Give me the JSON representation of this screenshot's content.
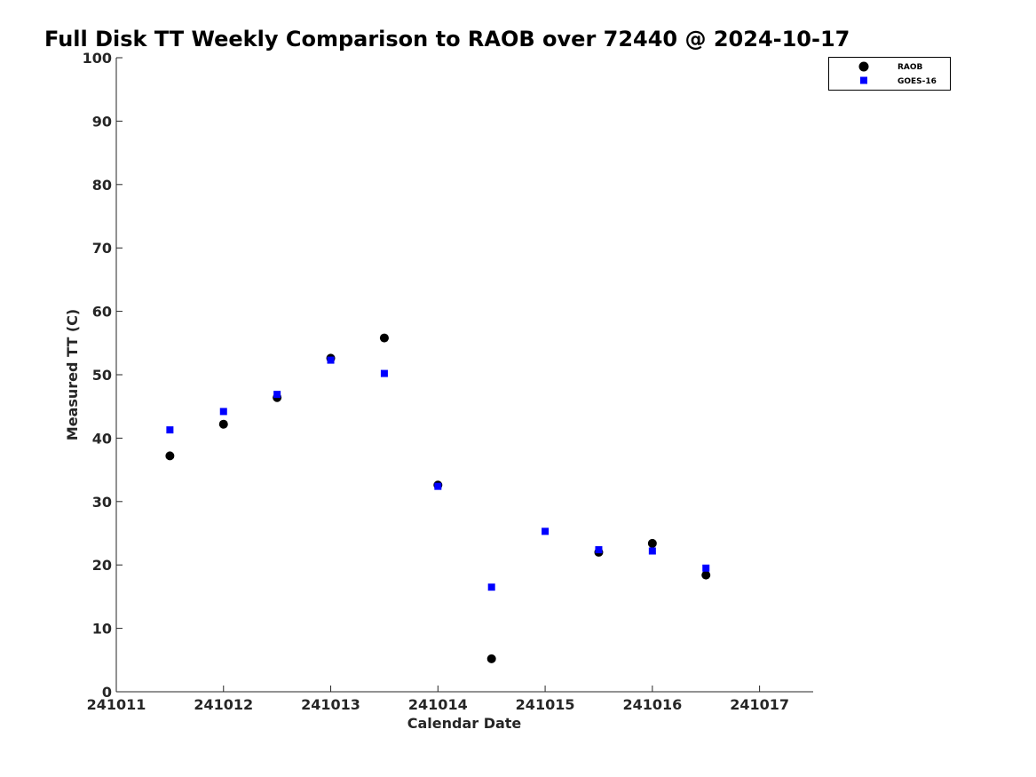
{
  "chart_data": {
    "type": "scatter",
    "title": "Full Disk TT Weekly Comparison to RAOB over 72440 @ 2024-10-17",
    "xlabel": "Calendar Date",
    "ylabel": "Measured TT (C)",
    "xlim": [
      241011,
      241017.5
    ],
    "ylim": [
      0,
      100
    ],
    "xticks": [
      241011,
      241012,
      241013,
      241014,
      241015,
      241016,
      241017
    ],
    "xtick_labels": [
      "241011",
      "241012",
      "241013",
      "241014",
      "241015",
      "241016",
      "241017"
    ],
    "yticks": [
      0,
      10,
      20,
      30,
      40,
      50,
      60,
      70,
      80,
      90,
      100
    ],
    "ytick_labels": [
      "0",
      "10",
      "20",
      "30",
      "40",
      "50",
      "60",
      "70",
      "80",
      "90",
      "100"
    ],
    "grid": false,
    "legend_position": "top-right",
    "series": [
      {
        "name": "RAOB",
        "marker": "circle",
        "color": "#000000",
        "points": [
          {
            "x": 241011.5,
            "y": 37.2
          },
          {
            "x": 241012.0,
            "y": 42.2
          },
          {
            "x": 241012.5,
            "y": 46.4
          },
          {
            "x": 241013.0,
            "y": 52.6
          },
          {
            "x": 241013.5,
            "y": 55.8
          },
          {
            "x": 241014.0,
            "y": 32.6
          },
          {
            "x": 241014.5,
            "y": 5.2
          },
          {
            "x": 241015.5,
            "y": 22.0
          },
          {
            "x": 241016.0,
            "y": 23.4
          },
          {
            "x": 241016.5,
            "y": 18.4
          }
        ]
      },
      {
        "name": "GOES-16",
        "marker": "square",
        "color": "#0000ff",
        "points": [
          {
            "x": 241011.5,
            "y": 41.3
          },
          {
            "x": 241012.0,
            "y": 44.2
          },
          {
            "x": 241012.5,
            "y": 46.9
          },
          {
            "x": 241013.0,
            "y": 52.3
          },
          {
            "x": 241013.5,
            "y": 50.2
          },
          {
            "x": 241014.0,
            "y": 32.4
          },
          {
            "x": 241014.5,
            "y": 16.5
          },
          {
            "x": 241015.0,
            "y": 25.3
          },
          {
            "x": 241015.5,
            "y": 22.4
          },
          {
            "x": 241016.0,
            "y": 22.2
          },
          {
            "x": 241016.5,
            "y": 19.5
          }
        ]
      }
    ]
  }
}
